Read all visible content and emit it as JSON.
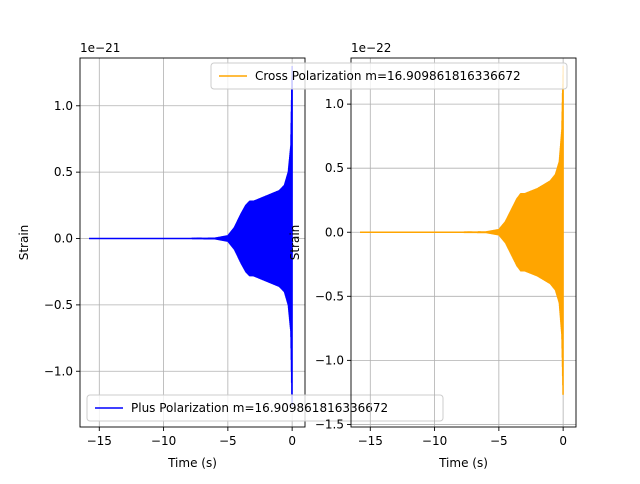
{
  "chart_data": [
    {
      "type": "line",
      "title": "",
      "xlabel": "Time (s)",
      "ylabel": "Strain",
      "offset_text": "1e−21",
      "scale": 1e-21,
      "xlim": [
        -16.5,
        1.0
      ],
      "ylim": [
        -1.42,
        1.36
      ],
      "xticks": [
        -15,
        -10,
        -5,
        0
      ],
      "xtick_labels": [
        "−15",
        "−10",
        "−5",
        "0"
      ],
      "yticks": [
        -1.0,
        -0.5,
        0.0,
        0.5,
        1.0
      ],
      "ytick_labels": [
        "−1.0",
        "−0.5",
        "0.0",
        "0.5",
        "1.0"
      ],
      "grid": true,
      "legend_position": "lower-left",
      "series": [
        {
          "name": "Plus Polarization m=16.909861816336672",
          "color": "#0000ff",
          "envelope": {
            "t": [
              -15.8,
              -8.0,
              -6.0,
              -5.0,
              -4.5,
              -4.0,
              -3.6,
              -3.3,
              -3.0,
              -2.5,
              -2.0,
              -1.5,
              -1.0,
              -0.6,
              -0.3,
              -0.1,
              0.0
            ],
            "amp": [
              0.0,
              0.0,
              0.002,
              0.02,
              0.08,
              0.18,
              0.25,
              0.28,
              0.28,
              0.3,
              0.32,
              0.34,
              0.36,
              0.4,
              0.5,
              0.7,
              1.3
            ]
          }
        }
      ]
    },
    {
      "type": "line",
      "title": "",
      "xlabel": "Time (s)",
      "ylabel": "Strain",
      "offset_text": "1e−22",
      "scale": 1e-22,
      "xlim": [
        -16.5,
        1.0
      ],
      "ylim": [
        -1.52,
        1.36
      ],
      "xticks": [
        -15,
        -10,
        -5,
        0
      ],
      "xtick_labels": [
        "−15",
        "−10",
        "−5",
        "0"
      ],
      "yticks": [
        -1.5,
        -1.0,
        -0.5,
        0.0,
        0.5,
        1.0
      ],
      "ytick_labels": [
        "−1.5",
        "−1.0",
        "−0.5",
        "0.0",
        "0.5",
        "1.0"
      ],
      "grid": true,
      "legend_position": "top-right",
      "series": [
        {
          "name": "Cross Polarization m=16.909861816336672",
          "color": "#ffa500",
          "envelope": {
            "t": [
              -15.8,
              -8.0,
              -6.0,
              -5.0,
              -4.5,
              -4.0,
              -3.6,
              -3.3,
              -3.0,
              -2.5,
              -2.0,
              -1.5,
              -1.0,
              -0.6,
              -0.3,
              -0.1,
              0.0
            ],
            "amp": [
              0.0,
              0.0,
              0.002,
              0.02,
              0.08,
              0.18,
              0.26,
              0.3,
              0.3,
              0.32,
              0.34,
              0.37,
              0.4,
              0.45,
              0.55,
              0.8,
              1.3
            ]
          }
        }
      ]
    }
  ]
}
